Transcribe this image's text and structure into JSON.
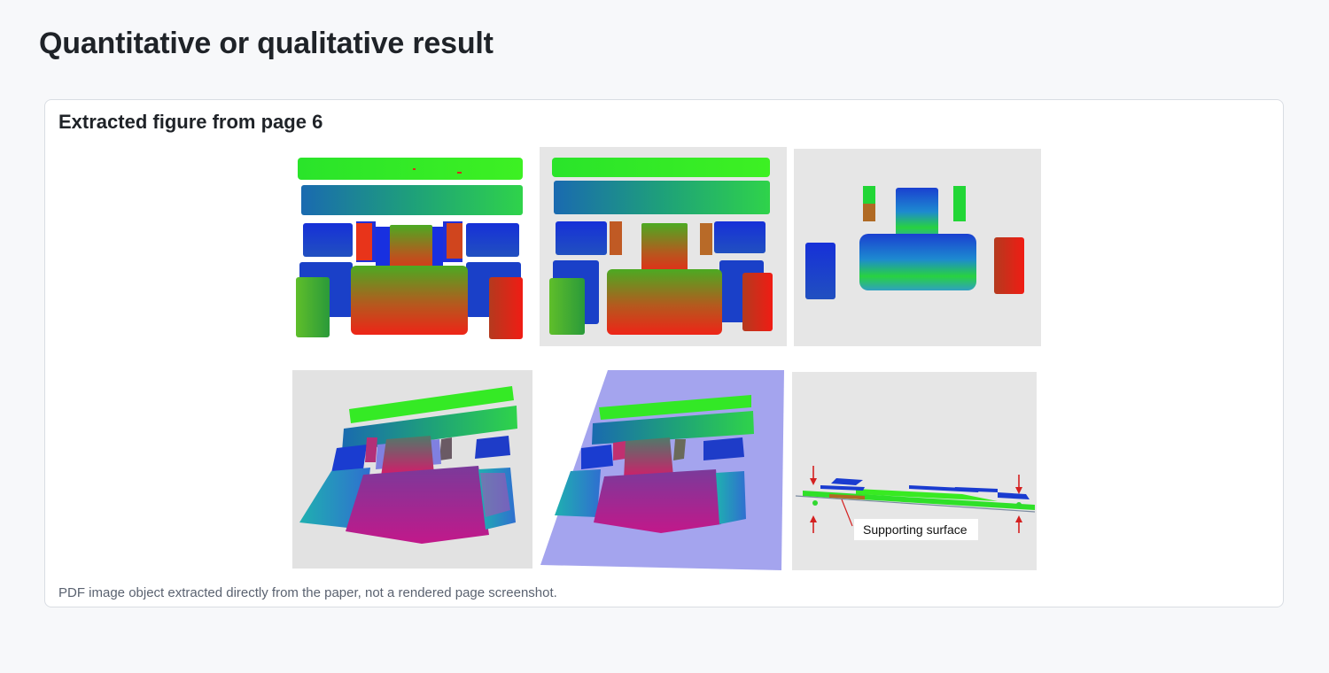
{
  "page": {
    "title": "Quantitative or qualitative result"
  },
  "figure_card": {
    "title": "Extracted figure from page 6",
    "caption": "PDF image object extracted directly from the paper, not a rendered page screenshot.",
    "figure": {
      "annotation_label": "Supporting surface",
      "annotation_color": "#d42020",
      "panel_background": "#e6e6e6",
      "plane_color": "#a4a4ee",
      "point_colors": [
        "#22e01f",
        "#1f8f8a",
        "#1028d8",
        "#e8221a",
        "#b0208c"
      ]
    }
  }
}
